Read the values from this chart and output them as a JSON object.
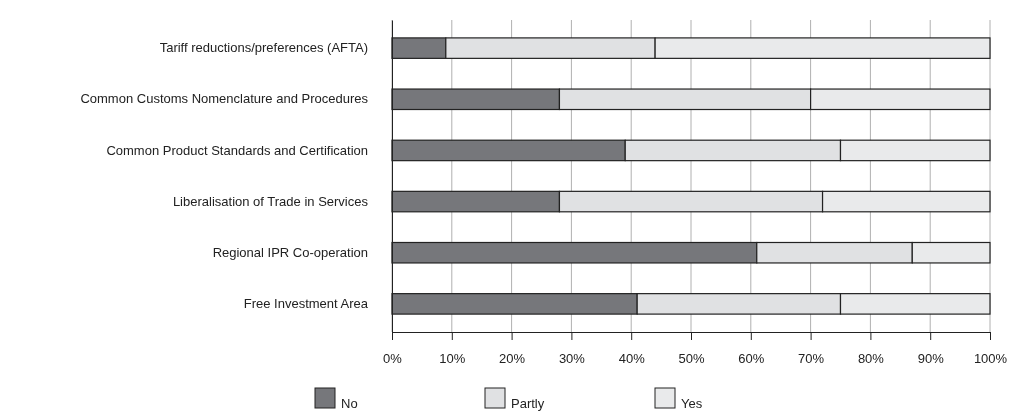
{
  "chart_data": {
    "type": "bar",
    "orientation": "horizontal",
    "stacked": true,
    "categories": [
      "Tariff reductions/preferences (AFTA)",
      "Common Customs Nomenclature and Procedures",
      "Common Product Standards and Certification",
      "Liberalisation of Trade in Services",
      "Regional IPR Co-operation",
      "Free Investment Area"
    ],
    "series": [
      {
        "name": "No",
        "color": "#76777b",
        "values": [
          9,
          28,
          39,
          28,
          61,
          41
        ]
      },
      {
        "name": "Partly",
        "color": "#e0e1e3",
        "values": [
          35,
          42,
          36,
          44,
          26,
          34
        ]
      },
      {
        "name": "Yes",
        "color": "#e9eaeb",
        "values": [
          56,
          30,
          25,
          28,
          13,
          25
        ]
      }
    ],
    "xlim": [
      0,
      100
    ],
    "xticks": [
      {
        "value": 0,
        "label": "0%"
      },
      {
        "value": 10,
        "label": "10%"
      },
      {
        "value": 20,
        "label": "20%"
      },
      {
        "value": 30,
        "label": "30%"
      },
      {
        "value": 40,
        "label": "40%"
      },
      {
        "value": 50,
        "label": "50%"
      },
      {
        "value": 60,
        "label": "60%"
      },
      {
        "value": 70,
        "label": "70%"
      },
      {
        "value": 80,
        "label": "80%"
      },
      {
        "value": 90,
        "label": "90%"
      },
      {
        "value": 100,
        "label": "100%"
      }
    ],
    "grid": "x",
    "legend": "bottom"
  }
}
